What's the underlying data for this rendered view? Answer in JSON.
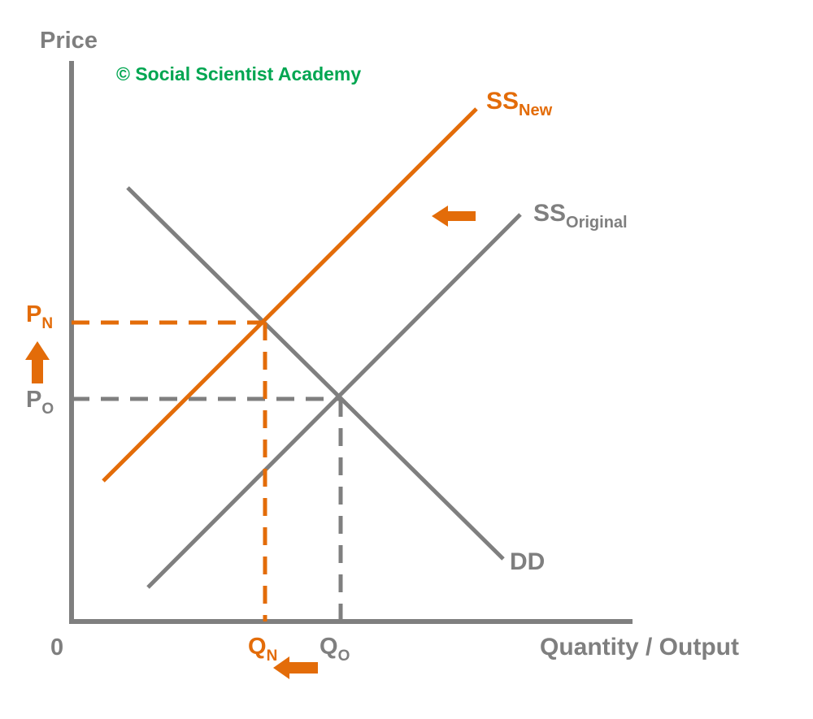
{
  "watermark": "© Social Scientist Academy",
  "axes": {
    "y_label": "Price",
    "x_label": "Quantity / Output",
    "origin": "0"
  },
  "curves": {
    "ss_new": {
      "main": "SS",
      "sub": "New"
    },
    "ss_original": {
      "main": "SS",
      "sub": "Original"
    },
    "dd": {
      "main": "DD"
    }
  },
  "price_labels": {
    "p_new": {
      "main": "P",
      "sub": "N"
    },
    "p_original": {
      "main": "P",
      "sub": "O"
    }
  },
  "quantity_labels": {
    "q_new": {
      "main": "Q",
      "sub": "N"
    },
    "q_original": {
      "main": "Q",
      "sub": "O"
    }
  },
  "colors": {
    "orange": "#e36c09",
    "grey": "#7f7f7f",
    "green": "#00a651"
  }
}
